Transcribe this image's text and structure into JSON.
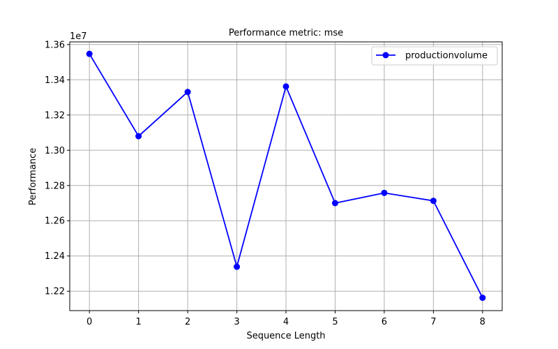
{
  "chart_data": {
    "type": "line",
    "title": "Performance metric: mse",
    "xlabel": "Sequence Length",
    "ylabel": "Performance",
    "y_offset_label": "1e7",
    "x": [
      0,
      1,
      2,
      3,
      4,
      5,
      6,
      7,
      8
    ],
    "x_ticks": [
      "0",
      "1",
      "2",
      "3",
      "4",
      "5",
      "6",
      "7",
      "8"
    ],
    "y_ticks": [
      {
        "value": 1.22,
        "label": "1.22"
      },
      {
        "value": 1.24,
        "label": "1.24"
      },
      {
        "value": 1.26,
        "label": "1.26"
      },
      {
        "value": 1.28,
        "label": "1.28"
      },
      {
        "value": 1.3,
        "label": "1.30"
      },
      {
        "value": 1.32,
        "label": "1.32"
      },
      {
        "value": 1.34,
        "label": "1.34"
      },
      {
        "value": 1.36,
        "label": "1.36"
      }
    ],
    "xlim": [
      -0.4,
      8.4
    ],
    "ylim": [
      1.209,
      1.3615
    ],
    "grid": true,
    "legend_position": "top-right",
    "series": [
      {
        "name": "productionvolume",
        "color": "#0000ff",
        "marker": "circle",
        "values": [
          1.3547,
          1.308,
          1.3331,
          1.2339,
          1.3362,
          1.27,
          1.2758,
          1.2713,
          1.2163
        ]
      }
    ]
  }
}
